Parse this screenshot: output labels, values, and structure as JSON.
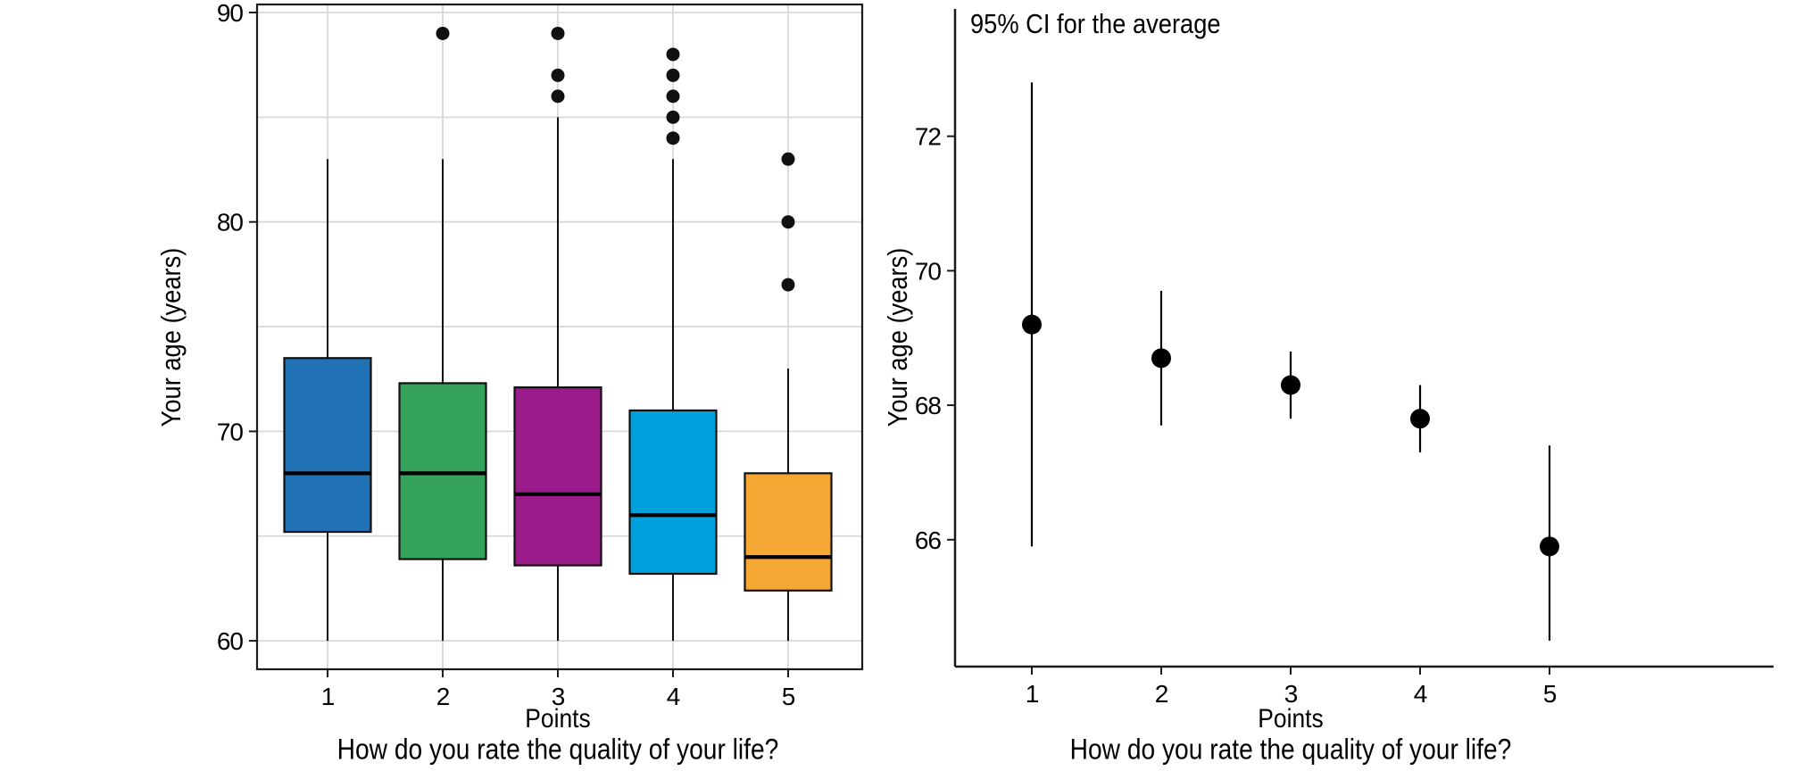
{
  "figure": {
    "background": "#ffffff",
    "text_color": "#000000",
    "gridline_color": "#d8d8d8",
    "axis_color": "#1a1a1a"
  },
  "chart_data": [
    {
      "type": "boxplot",
      "title": "",
      "xlabel": "Points",
      "x_sublabel": "How do you rate the quality of your life?",
      "ylabel": "Your age (years)",
      "categories": [
        "1",
        "2",
        "3",
        "4",
        "5"
      ],
      "y_ticks": [
        60,
        70,
        80,
        90
      ],
      "y_gridlines": [
        60,
        65,
        70,
        75,
        80,
        85,
        90
      ],
      "ylim": [
        58.6,
        90.4
      ],
      "grid": true,
      "panel_border": true,
      "boxes": [
        {
          "category": "1",
          "color": "#2171b5",
          "whisker_low": 60,
          "q1": 65.2,
          "median": 68,
          "q3": 73.5,
          "whisker_high": 83,
          "outliers": []
        },
        {
          "category": "2",
          "color": "#35a35c",
          "whisker_low": 60,
          "q1": 63.9,
          "median": 68,
          "q3": 72.3,
          "whisker_high": 83,
          "outliers": [
            89
          ]
        },
        {
          "category": "3",
          "color": "#9c1b8a",
          "whisker_low": 60,
          "q1": 63.6,
          "median": 67,
          "q3": 72.1,
          "whisker_high": 85,
          "outliers": [
            86,
            87,
            89
          ]
        },
        {
          "category": "4",
          "color": "#00a0dd",
          "whisker_low": 60,
          "q1": 63.2,
          "median": 66,
          "q3": 71.0,
          "whisker_high": 83,
          "outliers": [
            84,
            85,
            86,
            87,
            88
          ]
        },
        {
          "category": "5",
          "color": "#f5a733",
          "whisker_low": 60,
          "q1": 62.4,
          "median": 64,
          "q3": 68.0,
          "whisker_high": 73,
          "outliers": [
            77,
            80,
            83
          ]
        }
      ]
    },
    {
      "type": "scatter",
      "title": "95% CI for the average",
      "xlabel": "Points",
      "x_sublabel": "How do you rate the quality of your life?",
      "ylabel": "Your age (years)",
      "categories": [
        "1",
        "2",
        "3",
        "4",
        "5"
      ],
      "y_ticks": [
        66,
        68,
        70,
        72
      ],
      "ylim": [
        64.1,
        73.9
      ],
      "grid": false,
      "panel_border": false,
      "point_color": "#000000",
      "points": [
        {
          "category": "1",
          "mean": 69.2,
          "ci_low": 65.9,
          "ci_high": 72.8
        },
        {
          "category": "2",
          "mean": 68.7,
          "ci_low": 67.7,
          "ci_high": 69.7
        },
        {
          "category": "3",
          "mean": 68.3,
          "ci_low": 67.8,
          "ci_high": 68.8
        },
        {
          "category": "4",
          "mean": 67.8,
          "ci_low": 67.3,
          "ci_high": 68.3
        },
        {
          "category": "5",
          "mean": 65.9,
          "ci_low": 64.5,
          "ci_high": 67.4
        }
      ]
    }
  ]
}
